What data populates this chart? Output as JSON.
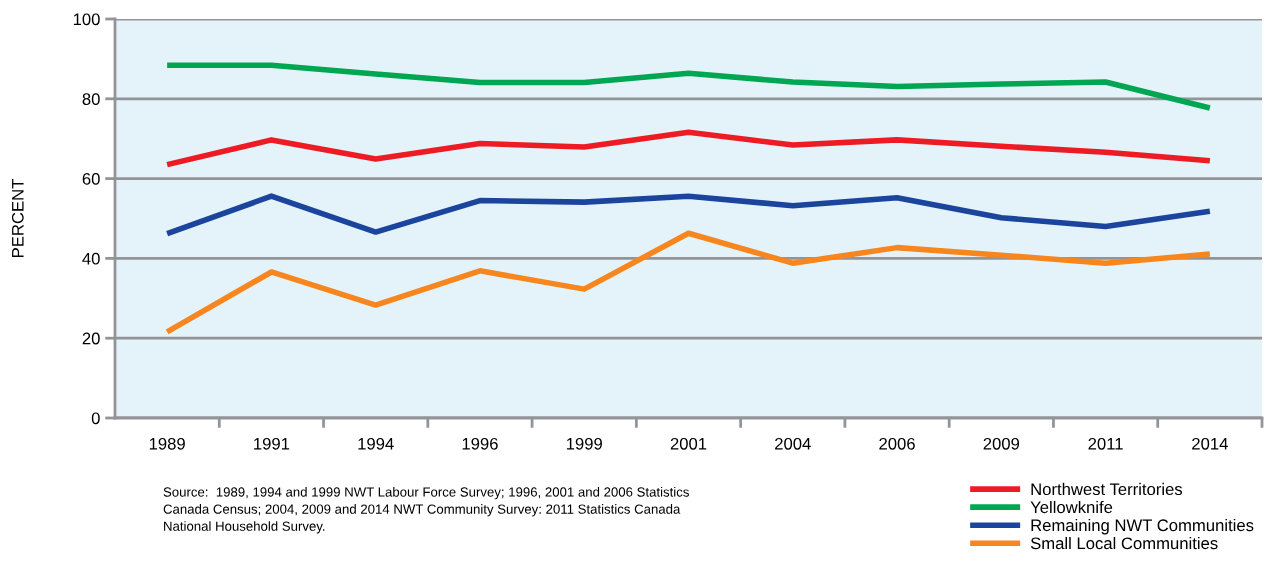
{
  "chart_data": {
    "type": "line",
    "categories": [
      "1989",
      "1991",
      "1994",
      "1996",
      "1999",
      "2001",
      "2004",
      "2006",
      "2009",
      "2011",
      "2014"
    ],
    "ylabel": "PERCENT",
    "ylim": [
      0,
      100
    ],
    "yticks": [
      0,
      20,
      40,
      60,
      80,
      100
    ],
    "grid": "y",
    "legend": "bottom right",
    "line_style": "solid",
    "marker": "none",
    "annotations": [
      "Source:  1989, 1994 and 1999 NWT Labour Force Survey; 1996, 2001 and 2006 Statistics\nCanada Census; 2004, 2009 and 2014 NWT Community Survey: 2011 Statistics Canada\nNational Household Survey."
    ],
    "series": [
      {
        "name": "Northwest Territories",
        "color": "#ed1c24",
        "values": [
          63.5,
          69.7,
          64.9,
          68.8,
          67.9,
          71.6,
          68.4,
          69.7,
          68.1,
          66.6,
          64.5
        ]
      },
      {
        "name": "Yellowknife",
        "color": "#00a651",
        "values": [
          88.4,
          88.4,
          86.2,
          84.1,
          84.1,
          86.4,
          84.2,
          83.1,
          83.7,
          84.2,
          77.7
        ]
      },
      {
        "name": "Remaining NWT Communities",
        "color": "#1b449c",
        "values": [
          46.2,
          55.6,
          46.6,
          54.5,
          54.1,
          55.6,
          53.2,
          55.2,
          50.2,
          48.0,
          51.8
        ]
      },
      {
        "name": "Small Local Communities",
        "color": "#f7861f",
        "values": [
          21.6,
          36.6,
          28.3,
          36.9,
          32.3,
          46.3,
          38.8,
          42.7,
          40.8,
          38.8,
          41.1
        ]
      }
    ]
  }
}
